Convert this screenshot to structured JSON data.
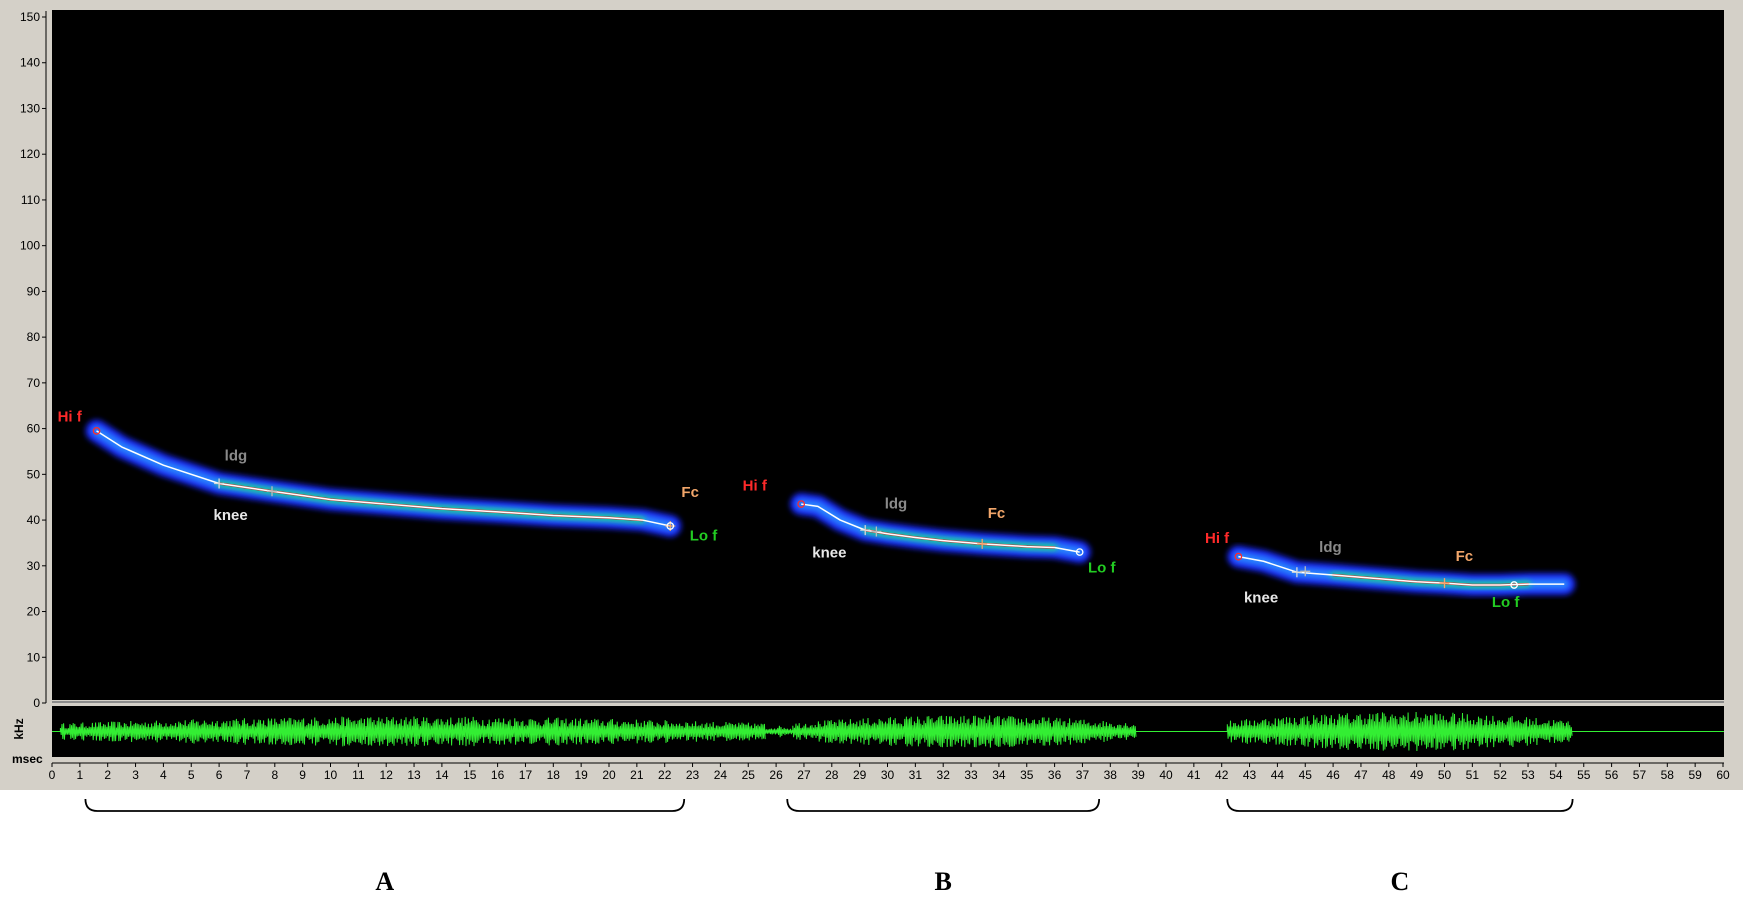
{
  "chart_data": {
    "type": "line",
    "ylabel": "kHz",
    "xlabel": "msec",
    "ylim": [
      0,
      150
    ],
    "xlim": [
      0,
      60
    ],
    "y_ticks": [
      "0",
      "10",
      "20",
      "30",
      "40",
      "50",
      "60",
      "70",
      "80",
      "90",
      "100",
      "110",
      "120",
      "130",
      "140",
      "150"
    ],
    "x_ticks": [
      "0",
      "1",
      "2",
      "3",
      "4",
      "5",
      "6",
      "7",
      "8",
      "9",
      "10",
      "11",
      "12",
      "13",
      "14",
      "15",
      "16",
      "17",
      "18",
      "19",
      "20",
      "21",
      "22",
      "23",
      "24",
      "25",
      "26",
      "27",
      "28",
      "29",
      "30",
      "31",
      "32",
      "33",
      "34",
      "35",
      "36",
      "37",
      "38",
      "39",
      "40",
      "41",
      "42",
      "43",
      "44",
      "45",
      "46",
      "47",
      "48",
      "49",
      "50",
      "51",
      "52",
      "53",
      "54",
      "55",
      "56",
      "57",
      "58",
      "59",
      "60"
    ],
    "grid": false,
    "colors": {
      "background": "#000000",
      "trace": "#ffffff",
      "energy_outer": "#1a2cff",
      "energy_mid": "#19e07a",
      "energy_core": "#e02020",
      "waveform": "#33ee33",
      "hif_label": "#ff2a2a",
      "fc_label": "#f2a66a",
      "lof_label": "#22cc22",
      "knee_label": "#e8e8e8",
      "ldg_label": "#8a8a8a",
      "frame": "#d4d0c8"
    },
    "calls": [
      {
        "group": "A",
        "points": [
          [
            1.6,
            59.5
          ],
          [
            2.5,
            56
          ],
          [
            4,
            52
          ],
          [
            6,
            48
          ],
          [
            7.9,
            46.3
          ],
          [
            10,
            44.5
          ],
          [
            12,
            43.5
          ],
          [
            14,
            42.5
          ],
          [
            16,
            41.8
          ],
          [
            18,
            41
          ],
          [
            20,
            40.5
          ],
          [
            21.2,
            40
          ],
          [
            22.2,
            38.7
          ]
        ],
        "markers": [
          {
            "name": "Hi f",
            "x": 1.6,
            "y": 59.5
          },
          {
            "name": "knee",
            "x": 6,
            "y": 48
          },
          {
            "name": "ldg",
            "x": 7.9,
            "y": 46.3
          },
          {
            "name": "Fc",
            "x": 22.2,
            "y": 38.7
          },
          {
            "name": "Lo f",
            "x": 22.2,
            "y": 38.7
          }
        ]
      },
      {
        "group": "B",
        "points": [
          [
            26.9,
            43.5
          ],
          [
            27.5,
            43
          ],
          [
            28.3,
            40
          ],
          [
            29.2,
            37.8
          ],
          [
            30,
            37
          ],
          [
            31,
            36.2
          ],
          [
            32,
            35.5
          ],
          [
            33.4,
            34.8
          ],
          [
            35,
            34.2
          ],
          [
            36,
            34
          ],
          [
            36.9,
            33
          ]
        ],
        "markers": [
          {
            "name": "Hi f",
            "x": 26.9,
            "y": 43.5
          },
          {
            "name": "knee",
            "x": 29.2,
            "y": 37.8
          },
          {
            "name": "ldg",
            "x": 29.6,
            "y": 37.5
          },
          {
            "name": "Fc",
            "x": 33.4,
            "y": 34.8
          },
          {
            "name": "Lo f",
            "x": 36.9,
            "y": 33
          }
        ]
      },
      {
        "group": "C",
        "points": [
          [
            42.6,
            32
          ],
          [
            43.5,
            31
          ],
          [
            44.7,
            28.6
          ],
          [
            46,
            28
          ],
          [
            47,
            27.5
          ],
          [
            48,
            27
          ],
          [
            49,
            26.5
          ],
          [
            50,
            26.2
          ],
          [
            51,
            25.8
          ],
          [
            52,
            25.8
          ],
          [
            53,
            26
          ],
          [
            54.3,
            26
          ]
        ],
        "markers": [
          {
            "name": "Hi f",
            "x": 42.6,
            "y": 32
          },
          {
            "name": "knee",
            "x": 44.7,
            "y": 28.6
          },
          {
            "name": "ldg",
            "x": 45,
            "y": 28.8
          },
          {
            "name": "Fc",
            "x": 50,
            "y": 26.2
          },
          {
            "name": "Lo f",
            "x": 52.5,
            "y": 25.8
          }
        ]
      }
    ],
    "annotations": [
      {
        "text": "Hi f",
        "x": 0.2,
        "y": 61.5,
        "color": "hif_label"
      },
      {
        "text": "ldg",
        "x": 6.2,
        "y": 53,
        "color": "ldg_label"
      },
      {
        "text": "knee",
        "x": 5.8,
        "y": 40,
        "color": "knee_label"
      },
      {
        "text": "Fc",
        "x": 22.6,
        "y": 45,
        "color": "fc_label"
      },
      {
        "text": "Lo f",
        "x": 22.9,
        "y": 35.5,
        "color": "lof_label"
      },
      {
        "text": "Hi f",
        "x": 24.8,
        "y": 46.5,
        "color": "hif_label"
      },
      {
        "text": "ldg",
        "x": 29.9,
        "y": 42.5,
        "color": "ldg_label"
      },
      {
        "text": "Fc",
        "x": 33.6,
        "y": 40.5,
        "color": "fc_label"
      },
      {
        "text": "knee",
        "x": 27.3,
        "y": 31.8,
        "color": "knee_label"
      },
      {
        "text": "Lo f",
        "x": 37.2,
        "y": 28.5,
        "color": "lof_label"
      },
      {
        "text": "Hi f",
        "x": 41.4,
        "y": 35,
        "color": "hif_label"
      },
      {
        "text": "ldg",
        "x": 45.5,
        "y": 33,
        "color": "ldg_label"
      },
      {
        "text": "Fc",
        "x": 50.4,
        "y": 31,
        "color": "fc_label"
      },
      {
        "text": "knee",
        "x": 42.8,
        "y": 22,
        "color": "knee_label"
      },
      {
        "text": "Lo f",
        "x": 51.7,
        "y": 21,
        "color": "lof_label"
      }
    ],
    "waveform_segments": [
      {
        "start": 0.3,
        "end": 25.6,
        "level": 0.65
      },
      {
        "start": 25.6,
        "end": 26.6,
        "level": 0.25
      },
      {
        "start": 26.6,
        "end": 38.9,
        "level": 0.7
      },
      {
        "start": 42.2,
        "end": 54.6,
        "level": 0.85
      }
    ],
    "groups": [
      {
        "label": "A",
        "x_start": 1.2,
        "x_end": 22.7
      },
      {
        "label": "B",
        "x_start": 26.4,
        "x_end": 37.6
      },
      {
        "label": "C",
        "x_start": 42.2,
        "x_end": 54.6
      }
    ]
  }
}
